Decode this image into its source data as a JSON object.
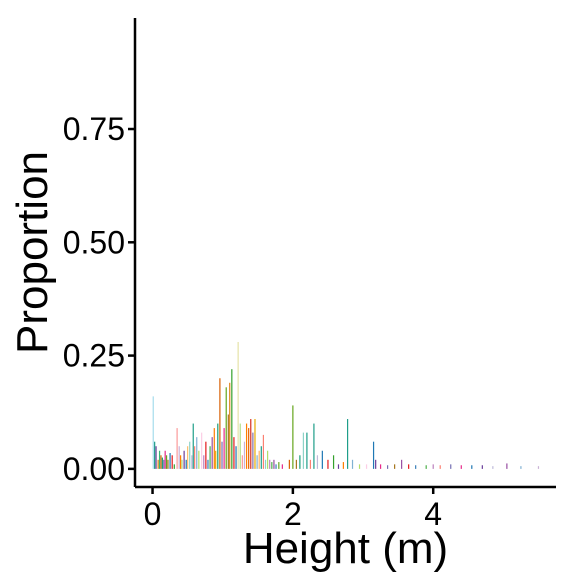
{
  "chart_data": {
    "type": "bar",
    "title": "",
    "xlabel": "Height (m)",
    "ylabel": "Proportion",
    "xlim": [
      -0.25,
      5.75
    ],
    "ylim": [
      -0.04,
      0.995
    ],
    "x_ticks": [
      0,
      2,
      4
    ],
    "x_tick_labels": [
      "0",
      "2",
      "4"
    ],
    "y_ticks": [
      0,
      0.25,
      0.5,
      0.75
    ],
    "y_tick_labels": [
      "0.00",
      "0.25",
      "0.50",
      "0.75"
    ],
    "grid": false,
    "legend": "none",
    "bars": [
      {
        "x": 0.01,
        "y": 0.16,
        "color": "#a6dcec"
      },
      {
        "x": 0.03,
        "y": 0.06,
        "color": "#1f9e89"
      },
      {
        "x": 0.05,
        "y": 0.05,
        "color": "#6a3d9a"
      },
      {
        "x": 0.08,
        "y": 0.02,
        "color": "#e08214"
      },
      {
        "x": 0.1,
        "y": 0.04,
        "color": "#35b779"
      },
      {
        "x": 0.12,
        "y": 0.03,
        "color": "#d95f02"
      },
      {
        "x": 0.14,
        "y": 0.025,
        "color": "#1b9e77"
      },
      {
        "x": 0.16,
        "y": 0.02,
        "color": "#7570b3"
      },
      {
        "x": 0.18,
        "y": 0.04,
        "color": "#e7298a"
      },
      {
        "x": 0.2,
        "y": 0.03,
        "color": "#66a61e"
      },
      {
        "x": 0.22,
        "y": 0.02,
        "color": "#a6761d"
      },
      {
        "x": 0.25,
        "y": 0.035,
        "color": "#1f78b4"
      },
      {
        "x": 0.28,
        "y": 0.03,
        "color": "#e31a1c"
      },
      {
        "x": 0.31,
        "y": 0.01,
        "color": "#33a02c"
      },
      {
        "x": 0.35,
        "y": 0.09,
        "color": "#fb9a99"
      },
      {
        "x": 0.38,
        "y": 0.05,
        "color": "#cab2d6"
      },
      {
        "x": 0.4,
        "y": 0.03,
        "color": "#ff7f00"
      },
      {
        "x": 0.42,
        "y": 0.02,
        "color": "#b2df8a"
      },
      {
        "x": 0.45,
        "y": 0.04,
        "color": "#6a3d9a"
      },
      {
        "x": 0.48,
        "y": 0.02,
        "color": "#1f78b4"
      },
      {
        "x": 0.5,
        "y": 0.05,
        "color": "#fdbf6f"
      },
      {
        "x": 0.53,
        "y": 0.06,
        "color": "#8dd3c7"
      },
      {
        "x": 0.56,
        "y": 0.03,
        "color": "#bebada"
      },
      {
        "x": 0.58,
        "y": 0.1,
        "color": "#1f9e89"
      },
      {
        "x": 0.6,
        "y": 0.05,
        "color": "#fb8072"
      },
      {
        "x": 0.63,
        "y": 0.07,
        "color": "#80b1d3"
      },
      {
        "x": 0.66,
        "y": 0.04,
        "color": "#b3de69"
      },
      {
        "x": 0.7,
        "y": 0.08,
        "color": "#fccde5"
      },
      {
        "x": 0.73,
        "y": 0.03,
        "color": "#bc80bd"
      },
      {
        "x": 0.76,
        "y": 0.06,
        "color": "#e41a1c"
      },
      {
        "x": 0.79,
        "y": 0.02,
        "color": "#377eb8"
      },
      {
        "x": 0.82,
        "y": 0.05,
        "color": "#4daf4a"
      },
      {
        "x": 0.85,
        "y": 0.07,
        "color": "#984ea3"
      },
      {
        "x": 0.88,
        "y": 0.09,
        "color": "#ff7f00"
      },
      {
        "x": 0.9,
        "y": 0.04,
        "color": "#e6ab02"
      },
      {
        "x": 0.93,
        "y": 0.1,
        "color": "#1b9e77"
      },
      {
        "x": 0.96,
        "y": 0.2,
        "color": "#d95f02"
      },
      {
        "x": 0.99,
        "y": 0.06,
        "color": "#7570b3"
      },
      {
        "x": 1.02,
        "y": 0.09,
        "color": "#e7298a"
      },
      {
        "x": 1.05,
        "y": 0.18,
        "color": "#66a61e"
      },
      {
        "x": 1.08,
        "y": 0.12,
        "color": "#a6761d"
      },
      {
        "x": 1.1,
        "y": 0.19,
        "color": "#e08214"
      },
      {
        "x": 1.13,
        "y": 0.22,
        "color": "#33a02c"
      },
      {
        "x": 1.16,
        "y": 0.07,
        "color": "#e31a1c"
      },
      {
        "x": 1.19,
        "y": 0.05,
        "color": "#1f78b4"
      },
      {
        "x": 1.22,
        "y": 0.28,
        "color": "#e6e2a8"
      },
      {
        "x": 1.25,
        "y": 0.1,
        "color": "#b2df8a"
      },
      {
        "x": 1.28,
        "y": 0.03,
        "color": "#fb9a99"
      },
      {
        "x": 1.31,
        "y": 0.06,
        "color": "#cab2d6"
      },
      {
        "x": 1.34,
        "y": 0.1,
        "color": "#ff7f00"
      },
      {
        "x": 1.37,
        "y": 0.09,
        "color": "#e66101"
      },
      {
        "x": 1.4,
        "y": 0.11,
        "color": "#d7301f"
      },
      {
        "x": 1.43,
        "y": 0.08,
        "color": "#8073ac"
      },
      {
        "x": 1.46,
        "y": 0.11,
        "color": "#e6ab02"
      },
      {
        "x": 1.49,
        "y": 0.03,
        "color": "#80b1d3"
      },
      {
        "x": 1.52,
        "y": 0.04,
        "color": "#fdb462"
      },
      {
        "x": 1.55,
        "y": 0.05,
        "color": "#1f9e89"
      },
      {
        "x": 1.58,
        "y": 0.075,
        "color": "#fb8072"
      },
      {
        "x": 1.61,
        "y": 0.02,
        "color": "#8dd3c7"
      },
      {
        "x": 1.64,
        "y": 0.04,
        "color": "#b3de69"
      },
      {
        "x": 1.67,
        "y": 0.02,
        "color": "#bc80bd"
      },
      {
        "x": 1.7,
        "y": 0.015,
        "color": "#4daf4a"
      },
      {
        "x": 1.73,
        "y": 0.02,
        "color": "#984ea3"
      },
      {
        "x": 1.76,
        "y": 0.01,
        "color": "#377eb8"
      },
      {
        "x": 1.8,
        "y": 0.015,
        "color": "#66a61e"
      },
      {
        "x": 1.85,
        "y": 0.01,
        "color": "#e7298a"
      },
      {
        "x": 1.95,
        "y": 0.02,
        "color": "#d95f02"
      },
      {
        "x": 2.0,
        "y": 0.14,
        "color": "#66a61e"
      },
      {
        "x": 2.05,
        "y": 0.02,
        "color": "#a6761d"
      },
      {
        "x": 2.1,
        "y": 0.03,
        "color": "#1b9e77"
      },
      {
        "x": 2.15,
        "y": 0.08,
        "color": "#8dd3c7"
      },
      {
        "x": 2.2,
        "y": 0.08,
        "color": "#1f9e89"
      },
      {
        "x": 2.25,
        "y": 0.02,
        "color": "#fb8072"
      },
      {
        "x": 2.3,
        "y": 0.1,
        "color": "#1f9e89"
      },
      {
        "x": 2.35,
        "y": 0.03,
        "color": "#bebada"
      },
      {
        "x": 2.42,
        "y": 0.04,
        "color": "#1f78b4"
      },
      {
        "x": 2.5,
        "y": 0.02,
        "color": "#e31a1c"
      },
      {
        "x": 2.58,
        "y": 0.03,
        "color": "#33a02c"
      },
      {
        "x": 2.65,
        "y": 0.01,
        "color": "#6a3d9a"
      },
      {
        "x": 2.72,
        "y": 0.015,
        "color": "#ff7f00"
      },
      {
        "x": 2.78,
        "y": 0.11,
        "color": "#1f9e89"
      },
      {
        "x": 2.85,
        "y": 0.02,
        "color": "#80b1d3"
      },
      {
        "x": 2.95,
        "y": 0.01,
        "color": "#b3de69"
      },
      {
        "x": 3.05,
        "y": 0.01,
        "color": "#fccde5"
      },
      {
        "x": 3.15,
        "y": 0.06,
        "color": "#1f78b4"
      },
      {
        "x": 3.18,
        "y": 0.02,
        "color": "#6a3d9a"
      },
      {
        "x": 3.25,
        "y": 0.01,
        "color": "#e7298a"
      },
      {
        "x": 3.35,
        "y": 0.008,
        "color": "#7570b3"
      },
      {
        "x": 3.45,
        "y": 0.01,
        "color": "#a6761d"
      },
      {
        "x": 3.55,
        "y": 0.02,
        "color": "#984ea3"
      },
      {
        "x": 3.65,
        "y": 0.01,
        "color": "#e41a1c"
      },
      {
        "x": 3.75,
        "y": 0.008,
        "color": "#377eb8"
      },
      {
        "x": 3.9,
        "y": 0.008,
        "color": "#4daf4a"
      },
      {
        "x": 4.0,
        "y": 0.01,
        "color": "#bc80bd"
      },
      {
        "x": 4.1,
        "y": 0.008,
        "color": "#fb8072"
      },
      {
        "x": 4.25,
        "y": 0.01,
        "color": "#7570b3"
      },
      {
        "x": 4.4,
        "y": 0.008,
        "color": "#e7298a"
      },
      {
        "x": 4.55,
        "y": 0.008,
        "color": "#1f78b4"
      },
      {
        "x": 4.7,
        "y": 0.008,
        "color": "#6a3d9a"
      },
      {
        "x": 4.85,
        "y": 0.006,
        "color": "#bebada"
      },
      {
        "x": 5.05,
        "y": 0.012,
        "color": "#984ea3"
      },
      {
        "x": 5.25,
        "y": 0.006,
        "color": "#80b1d3"
      },
      {
        "x": 5.5,
        "y": 0.006,
        "color": "#cab2d6"
      }
    ]
  }
}
